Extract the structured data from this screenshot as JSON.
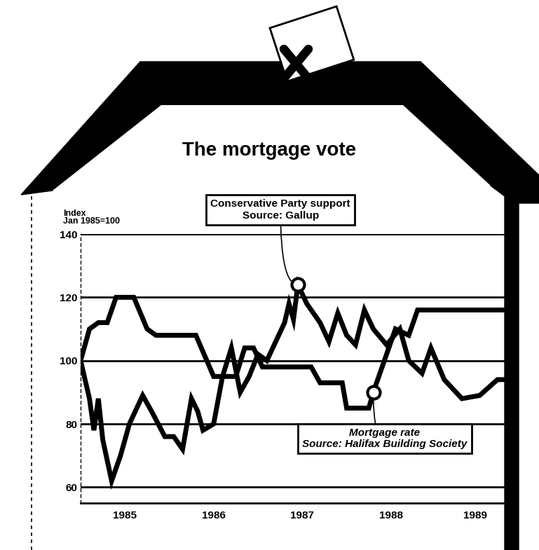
{
  "chart_data": {
    "type": "line",
    "title": "The mortgage vote",
    "ylabel": "Index\nJan 1985=100",
    "xlim": [
      1985.0,
      1989.9
    ],
    "xticks": [
      {
        "value": 1985.5,
        "label": "1985"
      },
      {
        "value": 1986.5,
        "label": "1986"
      },
      {
        "value": 1987.5,
        "label": "1987"
      },
      {
        "value": 1988.5,
        "label": "1988"
      },
      {
        "value": 1989.45,
        "label": "1989"
      }
    ],
    "ylim": [
      55,
      140
    ],
    "yticks": [
      60,
      80,
      100,
      120,
      140
    ],
    "grid": true,
    "series": [
      {
        "name": "Conservative Party support",
        "source": "Source: Gallup",
        "color": "#000000",
        "x": [
          1985.0,
          1985.1,
          1985.15,
          1985.2,
          1985.25,
          1985.35,
          1985.45,
          1985.55,
          1985.7,
          1985.8,
          1985.95,
          1986.05,
          1986.15,
          1986.25,
          1986.32,
          1986.38,
          1986.5,
          1986.6,
          1986.7,
          1986.8,
          1986.9,
          1987.0,
          1987.1,
          1987.3,
          1987.35,
          1987.4,
          1987.45,
          1987.55,
          1987.7,
          1987.8,
          1987.9,
          1988.0,
          1988.1,
          1988.2,
          1988.3,
          1988.45,
          1988.6,
          1988.7,
          1988.85,
          1988.95,
          1989.1,
          1989.3,
          1989.5,
          1989.7,
          1989.86
        ],
        "values": [
          100,
          88,
          78,
          88,
          75,
          62,
          70,
          80,
          89,
          84,
          76,
          76,
          72,
          88,
          84,
          78,
          80,
          95,
          104,
          90,
          95,
          102,
          100,
          112,
          118,
          113,
          124,
          118,
          112,
          106,
          115,
          108,
          105,
          116,
          110,
          105,
          110,
          100,
          96,
          104,
          94,
          88,
          89,
          94,
          94
        ]
      },
      {
        "name": "Mortgage rate",
        "source": "Source: Halifax Building Society",
        "color": "#000000",
        "x": [
          1985.0,
          1985.1,
          1985.2,
          1985.3,
          1985.4,
          1985.6,
          1985.75,
          1985.85,
          1986.3,
          1986.5,
          1986.75,
          1986.85,
          1986.95,
          1987.05,
          1987.6,
          1987.7,
          1987.95,
          1988.0,
          1988.25,
          1988.3,
          1988.4,
          1988.55,
          1988.7,
          1988.8,
          1989.9
        ],
        "values": [
          100,
          110,
          112,
          112,
          120,
          120,
          110,
          108,
          108,
          95,
          95,
          104,
          104,
          98,
          98,
          93,
          93,
          85,
          85,
          90,
          98,
          110,
          108,
          116,
          116
        ]
      }
    ]
  }
}
